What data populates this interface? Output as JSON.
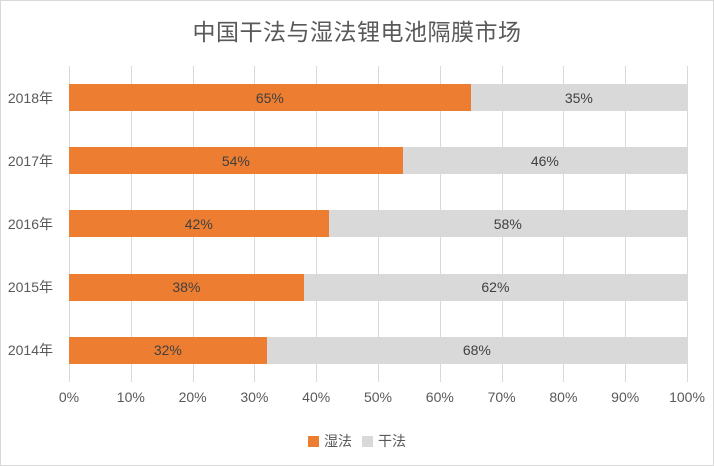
{
  "title": "中国干法与湿法锂电池隔膜市场",
  "chart_data": {
    "type": "bar",
    "orientation": "horizontal",
    "stacked": true,
    "title": "中国干法与湿法锂电池隔膜市场",
    "categories": [
      "2018年",
      "2017年",
      "2016年",
      "2015年",
      "2014年"
    ],
    "series": [
      {
        "name": "湿法",
        "color": "#ED7D31",
        "values": [
          65,
          54,
          42,
          38,
          32
        ]
      },
      {
        "name": "干法",
        "color": "#D9D9D9",
        "values": [
          35,
          46,
          58,
          62,
          68
        ]
      }
    ],
    "data_label_suffix": "%",
    "xlabel": "",
    "ylabel": "",
    "xlim": [
      0,
      100
    ],
    "x_ticks": [
      "0%",
      "10%",
      "20%",
      "30%",
      "40%",
      "50%",
      "60%",
      "70%",
      "80%",
      "90%",
      "100%"
    ],
    "grid": true,
    "legend_position": "bottom"
  },
  "colors": {
    "wet_series": "#ED7D31",
    "dry_series": "#D9D9D9",
    "gridline": "#D9D9D9",
    "border": "#D9D9D9",
    "title_text": "#595959",
    "axis_text": "#595959",
    "data_label_text": "#404040"
  }
}
